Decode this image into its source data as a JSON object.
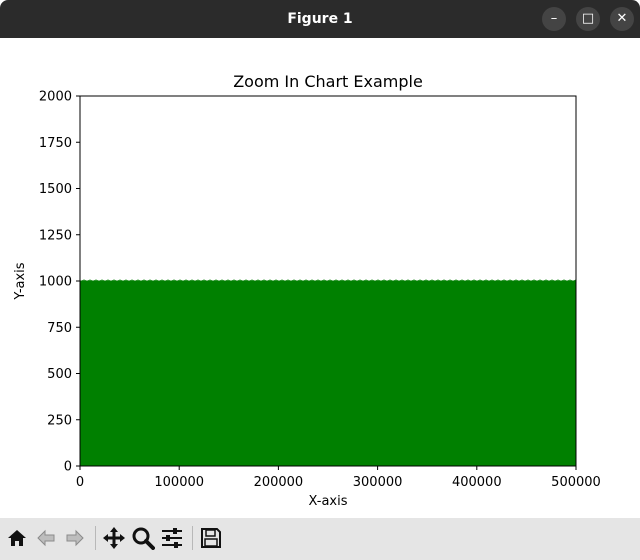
{
  "window": {
    "title": "Figure 1",
    "buttons": {
      "minimize": "–",
      "maximize": "□",
      "close": "✕"
    }
  },
  "toolbar": {
    "items": [
      {
        "name": "home",
        "icon": "home-icon"
      },
      {
        "name": "back",
        "icon": "back-arrow-icon"
      },
      {
        "name": "forward",
        "icon": "forward-arrow-icon"
      },
      {
        "name": "pan",
        "icon": "move-icon"
      },
      {
        "name": "zoom",
        "icon": "zoom-icon"
      },
      {
        "name": "configure",
        "icon": "sliders-icon"
      },
      {
        "name": "save",
        "icon": "save-icon"
      }
    ]
  },
  "colors": {
    "bar": "#008000",
    "titlebar": "#2b2b2b",
    "toolbar": "#e5e5e5"
  },
  "chart_data": {
    "type": "bar",
    "title": "Zoom In Chart Example",
    "xlabel": "X-axis",
    "ylabel": "Y-axis",
    "xlim": [
      0,
      500000
    ],
    "ylim": [
      0,
      2000
    ],
    "xticks": [
      0,
      100000,
      200000,
      300000,
      400000,
      500000
    ],
    "yticks": [
      0,
      250,
      500,
      750,
      1000,
      1250,
      1500,
      1750,
      2000
    ],
    "x": [
      0,
      500000
    ],
    "values": [
      1000,
      1000
    ],
    "grid": false,
    "legend": "none",
    "color": "#008000"
  }
}
